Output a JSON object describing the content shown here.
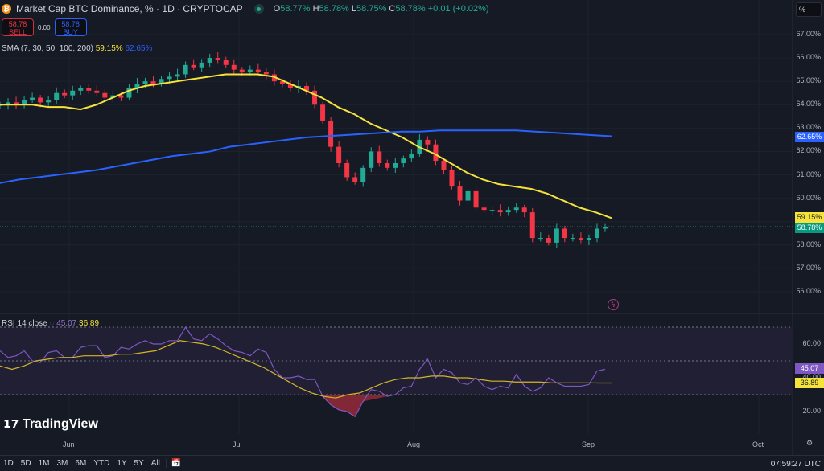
{
  "header": {
    "title": "Market Cap BTC Dominance, % · 1D · CRYPTOCAP",
    "o_label": "O",
    "o": "58.77%",
    "h_label": "H",
    "h": "58.78%",
    "l_label": "L",
    "l": "58.75%",
    "c_label": "C",
    "c": "58.78%",
    "change": "+0.01 (+0.02%)"
  },
  "trade": {
    "sell_price": "58.78",
    "sell_label": "SELL",
    "spread": "0.00",
    "buy_price": "58.78",
    "buy_label": "BUY"
  },
  "sma": {
    "label": "SMA (7, 30, 50, 100, 200)",
    "v1": "59.15%",
    "v2": "62.65%"
  },
  "rsi": {
    "label": "RSI 14 close",
    "v1": "45.07",
    "v2": "36.89"
  },
  "scale_mode": "%",
  "price_ticks": [
    "67.00%",
    "66.00%",
    "65.00%",
    "64.00%",
    "63.00%",
    "62.00%",
    "61.00%",
    "60.00%",
    "58.00%",
    "57.00%",
    "56.00%"
  ],
  "rsi_ticks": [
    "60.00",
    "40.00",
    "20.00"
  ],
  "tags": {
    "blue": "62.65%",
    "yellow": "59.15%",
    "green": "58.78%",
    "rsi_purple": "45.07",
    "rsi_yellow": "36.89"
  },
  "x_ticks": [
    "Jun",
    "Jul",
    "Aug",
    "Sep",
    "Oct"
  ],
  "ranges": [
    "1D",
    "5D",
    "1M",
    "3M",
    "6M",
    "YTD",
    "1Y",
    "5Y",
    "All"
  ],
  "clock": "07:59:27 UTC",
  "brand": "TradingView",
  "colors": {
    "up": "#22ab94",
    "down": "#f23645",
    "sma_yellow": "#f5e33b",
    "sma_blue": "#2962ff",
    "rsi": "#7e57c2"
  },
  "chart_data": {
    "type": "candlestick",
    "ylim": [
      55.5,
      67.5
    ],
    "rsi_ylim": [
      10,
      75
    ],
    "closes": [
      64.0,
      64.1,
      64.0,
      64.2,
      64.3,
      64.1,
      64.2,
      64.5,
      64.4,
      64.6,
      64.7,
      64.6,
      64.5,
      64.3,
      64.4,
      64.3,
      64.7,
      64.9,
      65.0,
      64.9,
      65.1,
      65.2,
      65.3,
      65.7,
      65.6,
      65.8,
      66.0,
      65.9,
      65.7,
      65.5,
      65.4,
      65.5,
      65.4,
      65.3,
      65.0,
      64.9,
      64.7,
      64.8,
      64.6,
      64.0,
      63.3,
      62.2,
      61.5,
      60.9,
      60.7,
      61.3,
      62.0,
      61.5,
      61.3,
      61.5,
      61.7,
      61.9,
      62.5,
      62.3,
      61.6,
      61.2,
      60.5,
      59.9,
      60.3,
      59.6,
      59.5,
      59.5,
      59.4,
      59.5,
      59.6,
      59.4,
      58.3,
      58.3,
      58.1,
      58.7,
      58.3,
      58.3,
      58.2,
      58.3,
      58.7,
      58.78
    ],
    "sma50": [
      64.0,
      64.0,
      64.0,
      63.9,
      63.9,
      63.8,
      64.0,
      64.3,
      64.6,
      64.8,
      64.9,
      65.0,
      65.1,
      65.2,
      65.3,
      65.3,
      65.3,
      65.2,
      64.9,
      64.6,
      64.3,
      63.9,
      63.6,
      63.2,
      62.9,
      62.6,
      62.2,
      61.9,
      61.5,
      61.1,
      60.8,
      60.6,
      60.5,
      60.4,
      60.2,
      59.9,
      59.6,
      59.4,
      59.15
    ],
    "sma200": [
      60.65,
      60.8,
      60.9,
      61.0,
      61.1,
      61.2,
      61.35,
      61.5,
      61.65,
      61.8,
      61.9,
      62.0,
      62.2,
      62.3,
      62.4,
      62.5,
      62.6,
      62.65,
      62.7,
      62.75,
      62.8,
      62.85,
      62.85,
      62.9,
      62.9,
      62.9,
      62.9,
      62.9,
      62.85,
      62.8,
      62.75,
      62.7,
      62.65
    ],
    "rsi_values": [
      56,
      52,
      53,
      56,
      50,
      49,
      55,
      56,
      52,
      52,
      58,
      59,
      59,
      52,
      53,
      58,
      57,
      60,
      62,
      60,
      60,
      62,
      62,
      70,
      63,
      62,
      66,
      63,
      59,
      56,
      55,
      53,
      57,
      55,
      45,
      40,
      40,
      41,
      39,
      39,
      29,
      24,
      21,
      20,
      17,
      26,
      33,
      32,
      29,
      30,
      34,
      35,
      45,
      51,
      40,
      45,
      43,
      37,
      36,
      40,
      35,
      33,
      35,
      34,
      42,
      35,
      32,
      34,
      40,
      37,
      35,
      35,
      35,
      36,
      44,
      45.07
    ],
    "rsi_ma": [
      47,
      45,
      47,
      50,
      51,
      52,
      52,
      53,
      53,
      53,
      54,
      54,
      55,
      56,
      59,
      62,
      61,
      60,
      58,
      55,
      52,
      49,
      46,
      42,
      38,
      34,
      31,
      29,
      28,
      30,
      31,
      34,
      37,
      39,
      40,
      40,
      41,
      41,
      40,
      40,
      39,
      38,
      38,
      37.5,
      37.5,
      37.5,
      37,
      37,
      37,
      37,
      36.9,
      36.89
    ]
  }
}
